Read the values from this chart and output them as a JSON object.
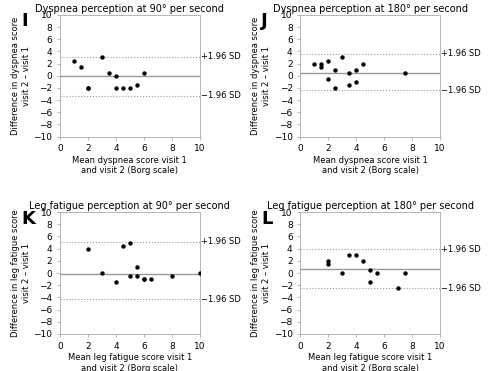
{
  "panels": [
    {
      "label": "I",
      "title": "Dyspnea perception at 90° per second",
      "xlabel": "Mean dyspnea score visit 1\nand visit 2 (Borg scale)",
      "ylabel": "Difference in dyspnea score\nvisit 2 – visit 1",
      "mean_line": -0.1,
      "upper_sd": 3.1,
      "lower_sd": -3.3,
      "xlim": [
        0,
        10
      ],
      "ylim": [
        -10,
        10
      ],
      "xticks": [
        0,
        2,
        4,
        6,
        8,
        10
      ],
      "yticks": [
        -10,
        -8,
        -6,
        -4,
        -2,
        0,
        2,
        4,
        6,
        8,
        10
      ],
      "points_x": [
        1.0,
        1.5,
        2.0,
        2.0,
        3.0,
        3.5,
        4.0,
        4.0,
        4.5,
        5.0,
        5.5,
        6.0
      ],
      "points_y": [
        2.5,
        1.5,
        -2.0,
        -2.0,
        3.0,
        0.5,
        0.0,
        -2.0,
        -2.0,
        -2.0,
        -1.5,
        0.5
      ]
    },
    {
      "label": "J",
      "title": "Dyspnea perception at 180° per second",
      "xlabel": "Mean dyspnea score visit 1\nand visit 2 (Borg scale)",
      "ylabel": "Difference in dyspnea score\nvisit 2 – visit 1",
      "mean_line": 0.5,
      "upper_sd": 3.6,
      "lower_sd": -2.4,
      "xlim": [
        0,
        10
      ],
      "ylim": [
        -10,
        10
      ],
      "xticks": [
        0,
        2,
        4,
        6,
        8,
        10
      ],
      "yticks": [
        -10,
        -8,
        -6,
        -4,
        -2,
        0,
        2,
        4,
        6,
        8,
        10
      ],
      "points_x": [
        1.0,
        1.5,
        1.5,
        2.0,
        2.0,
        2.5,
        2.5,
        3.0,
        3.5,
        3.5,
        4.0,
        4.0,
        4.5,
        7.5
      ],
      "points_y": [
        2.0,
        2.0,
        1.5,
        2.5,
        -0.5,
        1.0,
        -2.0,
        3.0,
        -1.5,
        0.5,
        1.0,
        -1.0,
        2.0,
        0.5
      ]
    },
    {
      "label": "K",
      "title": "Leg fatigue perception at 90° per second",
      "xlabel": "Mean leg fatigue score visit 1\nand visit 2 (Borg scale)",
      "ylabel": "Difference in leg fatigue score\nvisit 2 – visit 1",
      "mean_line": -0.1,
      "upper_sd": 5.1,
      "lower_sd": -4.3,
      "xlim": [
        0,
        10
      ],
      "ylim": [
        -10,
        10
      ],
      "xticks": [
        0,
        2,
        4,
        6,
        8,
        10
      ],
      "yticks": [
        -10,
        -8,
        -6,
        -4,
        -2,
        0,
        2,
        4,
        6,
        8,
        10
      ],
      "points_x": [
        2.0,
        3.0,
        4.0,
        4.5,
        5.0,
        5.0,
        5.5,
        5.5,
        6.0,
        6.0,
        6.5,
        8.0,
        10.0
      ],
      "points_y": [
        4.0,
        0.0,
        -1.5,
        4.5,
        5.0,
        -0.5,
        1.0,
        -0.5,
        -1.0,
        -1.0,
        -1.0,
        -0.5,
        0.0
      ]
    },
    {
      "label": "L",
      "title": "Leg fatigue perception at 180° per second",
      "xlabel": "Mean leg fatigue score visit 1\nand visit 2 (Borg scale)",
      "ylabel": "Difference in leg fatigue score\nvisit 2 – visit 1",
      "mean_line": 0.7,
      "upper_sd": 3.9,
      "lower_sd": -2.5,
      "xlim": [
        0,
        10
      ],
      "ylim": [
        -10,
        10
      ],
      "xticks": [
        0,
        2,
        4,
        6,
        8,
        10
      ],
      "yticks": [
        -10,
        -8,
        -6,
        -4,
        -2,
        0,
        2,
        4,
        6,
        8,
        10
      ],
      "points_x": [
        2.0,
        2.0,
        3.0,
        3.5,
        4.0,
        4.5,
        5.0,
        5.0,
        5.5,
        7.0,
        7.5
      ],
      "points_y": [
        2.0,
        1.5,
        0.0,
        3.0,
        3.0,
        2.0,
        -1.5,
        0.5,
        0.0,
        -2.5,
        0.0
      ]
    }
  ],
  "dot_color": "#000000",
  "dot_size": 10,
  "mean_line_color": "#999999",
  "sd_line_color": "#999999",
  "spine_color": "#aaaaaa",
  "label_fontsize": 13,
  "title_fontsize": 7,
  "tick_fontsize": 6.5,
  "axis_label_fontsize": 6,
  "sd_label_fontsize": 6
}
